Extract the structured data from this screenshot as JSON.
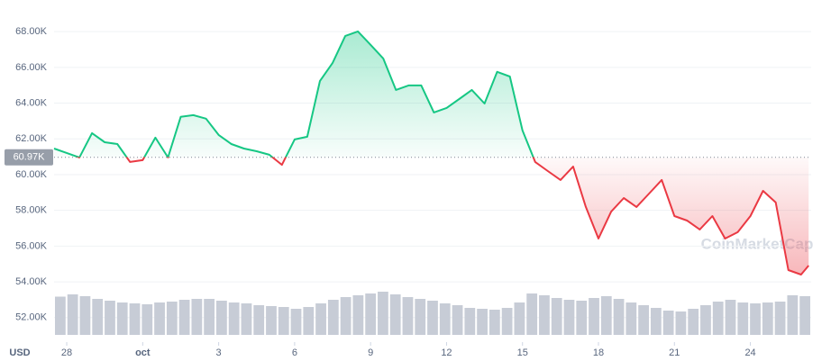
{
  "chart_data": {
    "type": "line",
    "currency_label": "USD",
    "watermark": "CoinMarketCap",
    "baseline": {
      "value": 60970,
      "label": "60.97K"
    },
    "up_color": "#16c784",
    "down_color": "#ea3943",
    "volume_color": "#c7ccd6",
    "xlim": [
      -0.5,
      29.4
    ],
    "xticks": [
      {
        "value": 0,
        "label": "28"
      },
      {
        "value": 3,
        "label": "oct"
      },
      {
        "value": 6,
        "label": "3"
      },
      {
        "value": 9,
        "label": "6"
      },
      {
        "value": 12,
        "label": "9"
      },
      {
        "value": 15,
        "label": "12"
      },
      {
        "value": 18,
        "label": "15"
      },
      {
        "value": 21,
        "label": "18"
      },
      {
        "value": 24,
        "label": "21"
      },
      {
        "value": 27,
        "label": "24"
      }
    ],
    "ylim": [
      50630,
      69770
    ],
    "yticks": [
      {
        "value": 52000,
        "label": "52.00K"
      },
      {
        "value": 54000,
        "label": "54.00K"
      },
      {
        "value": 56000,
        "label": "56.00K"
      },
      {
        "value": 58000,
        "label": "58.00K"
      },
      {
        "value": 60000,
        "label": "60.00K"
      },
      {
        "value": 62000,
        "label": "62.00K"
      },
      {
        "value": 64000,
        "label": "64.00K"
      },
      {
        "value": 66000,
        "label": "66.00K"
      },
      {
        "value": 68000,
        "label": "68.00K"
      }
    ],
    "grid": true,
    "x": [
      -0.5,
      0,
      0.5,
      1,
      1.5,
      2,
      2.5,
      3,
      3.5,
      4,
      4.5,
      5,
      5.5,
      6,
      6.5,
      7,
      7.5,
      8,
      8.5,
      9,
      9.5,
      10,
      10.5,
      11,
      11.5,
      12,
      12.5,
      13,
      13.5,
      14,
      14.5,
      15,
      15.5,
      16,
      16.5,
      17,
      17.5,
      18,
      18.5,
      19,
      19.5,
      20,
      20.5,
      21,
      21.5,
      22,
      22.5,
      23,
      23.5,
      24,
      24.5,
      25,
      25.5,
      26,
      26.5,
      27,
      27.5,
      28,
      28.5,
      29,
      29.3
    ],
    "series": [
      {
        "values": [
          61460,
          61210,
          60960,
          62320,
          61810,
          61710,
          60710,
          60810,
          62070,
          60960,
          63230,
          63330,
          63130,
          62220,
          61710,
          61460,
          61310,
          61110,
          60550,
          61970,
          62120,
          65240,
          66250,
          67760,
          68010,
          67260,
          66500,
          64740,
          64990,
          64990,
          63480,
          63730,
          64230,
          64740,
          63980,
          65750,
          65490,
          62470,
          60710,
          60200,
          59700,
          60450,
          58190,
          56420,
          57930,
          58690,
          58190,
          58940,
          59700,
          57680,
          57430,
          56930,
          57680,
          56420,
          56780,
          57680,
          59090,
          58440,
          54660,
          54410,
          54910
        ]
      }
    ],
    "volume_ylim": [
      0,
      100
    ],
    "volume_values": [
      85,
      90,
      86,
      80,
      76,
      72,
      70,
      68,
      72,
      74,
      78,
      80,
      80,
      76,
      72,
      70,
      66,
      64,
      62,
      58,
      62,
      70,
      78,
      84,
      88,
      92,
      96,
      90,
      84,
      80,
      76,
      70,
      66,
      60,
      58,
      56,
      60,
      72,
      92,
      88,
      82,
      78,
      76,
      82,
      86,
      80,
      72,
      66,
      60,
      54,
      52,
      58,
      66,
      74,
      78,
      72,
      70,
      72,
      74,
      88,
      86
    ]
  }
}
